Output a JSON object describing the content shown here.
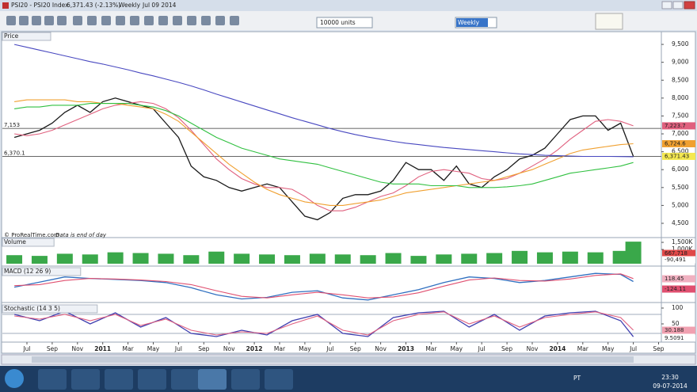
{
  "window": {
    "title": "PSI20 - PSI20 Index",
    "quote": "6,371.43 (-2.13%)",
    "period": "Weekly",
    "date": "Jul 09 2014"
  },
  "toolbar": {
    "units": "10000 units",
    "period": "Weekly"
  },
  "chart_data": [
    {
      "type": "line",
      "title": "Price",
      "source": "© ProRealTime.com",
      "note": "Data is end of day",
      "x": [
        "2010-06",
        "2010-07",
        "2010-08",
        "2010-09",
        "2010-10",
        "2010-11",
        "2010-12",
        "2011-01",
        "2011-02",
        "2011-03",
        "2011-04",
        "2011-05",
        "2011-06",
        "2011-07",
        "2011-08",
        "2011-09",
        "2011-10",
        "2011-11",
        "2011-12",
        "2012-01",
        "2012-02",
        "2012-03",
        "2012-04",
        "2012-05",
        "2012-06",
        "2012-07",
        "2012-08",
        "2012-09",
        "2012-10",
        "2012-11",
        "2012-12",
        "2013-01",
        "2013-02",
        "2013-03",
        "2013-04",
        "2013-05",
        "2013-06",
        "2013-07",
        "2013-08",
        "2013-09",
        "2013-10",
        "2013-11",
        "2013-12",
        "2014-01",
        "2014-02",
        "2014-03",
        "2014-04",
        "2014-05",
        "2014-06",
        "2014-07"
      ],
      "series": [
        {
          "color": "#1a1a1a",
          "values": [
            6900,
            7000,
            7100,
            7300,
            7600,
            7800,
            7600,
            7900,
            8000,
            7900,
            7800,
            7700,
            7300,
            6900,
            6100,
            5800,
            5700,
            5500,
            5400,
            5500,
            5600,
            5500,
            5100,
            4700,
            4600,
            4800,
            5200,
            5300,
            5300,
            5400,
            5700,
            6200,
            6000,
            6000,
            5700,
            6100,
            5600,
            5500,
            5800,
            6000,
            6300,
            6400,
            6600,
            7000,
            7400,
            7500,
            7500,
            7100,
            7300,
            6371.43
          ]
        },
        {
          "color": "#e0607e",
          "values": [
            7000,
            6950,
            7000,
            7100,
            7250,
            7400,
            7550,
            7700,
            7800,
            7850,
            7900,
            7850,
            7700,
            7450,
            7100,
            6700,
            6300,
            6000,
            5750,
            5600,
            5500,
            5500,
            5450,
            5250,
            5000,
            4850,
            4850,
            4950,
            5100,
            5250,
            5350,
            5550,
            5800,
            5950,
            6000,
            5950,
            5900,
            5750,
            5700,
            5750,
            5900,
            6100,
            6300,
            6550,
            6850,
            7100,
            7350,
            7400,
            7350,
            7224
          ]
        },
        {
          "color": "#f0a030",
          "values": [
            7900,
            7950,
            7950,
            7950,
            7950,
            7900,
            7900,
            7850,
            7850,
            7800,
            7750,
            7700,
            7550,
            7350,
            7050,
            6750,
            6450,
            6150,
            5900,
            5650,
            5450,
            5300,
            5200,
            5100,
            5050,
            5000,
            5000,
            5050,
            5100,
            5150,
            5250,
            5350,
            5400,
            5450,
            5500,
            5550,
            5600,
            5650,
            5700,
            5800,
            5900,
            6000,
            6150,
            6300,
            6450,
            6550,
            6600,
            6650,
            6700,
            6725
          ]
        },
        {
          "color": "#30c040",
          "values": [
            7700,
            7750,
            7750,
            7800,
            7800,
            7800,
            7850,
            7850,
            7850,
            7850,
            7800,
            7750,
            7650,
            7500,
            7300,
            7100,
            6900,
            6750,
            6600,
            6500,
            6400,
            6300,
            6250,
            6200,
            6150,
            6050,
            5950,
            5850,
            5750,
            5650,
            5600,
            5600,
            5600,
            5550,
            5550,
            5550,
            5500,
            5500,
            5500,
            5520,
            5550,
            5600,
            5700,
            5800,
            5900,
            5950,
            6000,
            6050,
            6100,
            6200
          ]
        },
        {
          "color": "#4848c0",
          "values": [
            9500,
            9420,
            9340,
            9260,
            9180,
            9100,
            9020,
            8950,
            8870,
            8790,
            8700,
            8620,
            8530,
            8440,
            8340,
            8230,
            8110,
            8000,
            7890,
            7780,
            7670,
            7560,
            7450,
            7350,
            7250,
            7150,
            7060,
            6980,
            6910,
            6850,
            6790,
            6740,
            6700,
            6660,
            6620,
            6590,
            6560,
            6530,
            6500,
            6470,
            6440,
            6420,
            6400,
            6390,
            6380,
            6370,
            6370,
            6370,
            6365,
            6360
          ]
        }
      ],
      "ylim": [
        4190,
        9590
      ],
      "yticks": [
        {
          "value": 9500,
          "label": "9,500"
        },
        {
          "value": 9000,
          "label": "9,000"
        },
        {
          "value": 8500,
          "label": "8,500"
        },
        {
          "value": 8000,
          "label": "8,000"
        },
        {
          "value": 7500,
          "label": "7,500"
        },
        {
          "value": 7000,
          "label": "7,000"
        },
        {
          "value": 6500,
          "label": "6,500"
        },
        {
          "value": 6000,
          "label": "6,000"
        },
        {
          "value": 5500,
          "label": "5,500"
        },
        {
          "value": 5000,
          "label": "5,000"
        },
        {
          "value": 4500,
          "label": "4,500"
        }
      ],
      "levels": [
        {
          "value": 7153,
          "label": "7,153"
        },
        {
          "value": 6370.1,
          "label": "6,370.1"
        }
      ],
      "tags": [
        {
          "value": 7223.7,
          "label": "7,223.7",
          "color": "#e0607e"
        },
        {
          "value": 6724.6,
          "label": "6,724.6",
          "color": "#f0a030"
        },
        {
          "value": 6371.43,
          "label": "6,371.43",
          "color": "#f4e850"
        }
      ]
    },
    {
      "type": "bar",
      "title": "Volume",
      "color": "#3aa84a",
      "x": [
        "2010-06",
        "2010-08",
        "2010-10",
        "2010-12",
        "2011-02",
        "2011-04",
        "2011-06",
        "2011-08",
        "2011-10",
        "2011-12",
        "2012-02",
        "2012-04",
        "2012-06",
        "2012-08",
        "2012-10",
        "2012-12",
        "2013-02",
        "2013-04",
        "2013-06",
        "2013-08",
        "2013-10",
        "2013-12",
        "2014-02",
        "2014-04",
        "2014-06",
        "2014-07"
      ],
      "values": [
        600000,
        550000,
        700000,
        650000,
        800000,
        750000,
        700000,
        600000,
        850000,
        700000,
        650000,
        600000,
        700000,
        650000,
        600000,
        750000,
        550000,
        650000,
        700000,
        750000,
        900000,
        800000,
        850000,
        800000,
        900000,
        1550000
      ],
      "ylim": [
        0,
        1780000
      ],
      "yticks": [
        {
          "value": 1500000,
          "label": "1,500K"
        },
        {
          "value": 1000000,
          "label": "1,000K"
        }
      ],
      "readouts": [
        {
          "label": "667,718",
          "color": "#e04848"
        },
        {
          "label": "-90,491",
          "color": "#ffffff"
        }
      ]
    },
    {
      "type": "line",
      "title": "MACD (12 26 9)",
      "x": [
        "2010-06",
        "2010-08",
        "2010-10",
        "2010-12",
        "2011-02",
        "2011-04",
        "2011-06",
        "2011-08",
        "2011-10",
        "2011-12",
        "2012-02",
        "2012-04",
        "2012-06",
        "2012-08",
        "2012-10",
        "2012-12",
        "2013-02",
        "2013-04",
        "2013-06",
        "2013-08",
        "2013-10",
        "2013-12",
        "2014-02",
        "2014-04",
        "2014-06",
        "2014-07"
      ],
      "series": [
        {
          "color": "#3070c0",
          "values": [
            -50,
            50,
            150,
            120,
            100,
            80,
            40,
            -60,
            -200,
            -280,
            -250,
            -150,
            -120,
            -260,
            -300,
            -200,
            -100,
            40,
            150,
            120,
            40,
            80,
            150,
            220,
            200,
            60
          ]
        },
        {
          "color": "#e05070",
          "values": [
            -20,
            0,
            80,
            120,
            110,
            90,
            60,
            0,
            -120,
            -230,
            -260,
            -200,
            -150,
            -200,
            -260,
            -240,
            -160,
            -30,
            90,
            130,
            80,
            70,
            110,
            180,
            210,
            118
          ]
        }
      ],
      "ylim": [
        -350,
        300
      ],
      "readouts": [
        {
          "label": "118.45",
          "color": "#f0b0c0"
        },
        {
          "label": "-124.11",
          "color": "#e05070"
        }
      ]
    },
    {
      "type": "line",
      "title": "Stochastic (14 3 5)",
      "x": [
        "2010-06",
        "2010-08",
        "2010-10",
        "2010-12",
        "2011-02",
        "2011-04",
        "2011-06",
        "2011-08",
        "2011-10",
        "2011-12",
        "2012-02",
        "2012-04",
        "2012-06",
        "2012-08",
        "2012-10",
        "2012-12",
        "2013-02",
        "2013-04",
        "2013-06",
        "2013-08",
        "2013-10",
        "2013-12",
        "2014-02",
        "2014-04",
        "2014-06",
        "2014-07"
      ],
      "series": [
        {
          "color": "#4040b0",
          "values": [
            80,
            60,
            90,
            50,
            85,
            40,
            70,
            20,
            10,
            30,
            15,
            60,
            80,
            20,
            10,
            70,
            85,
            90,
            40,
            80,
            30,
            75,
            85,
            90,
            60,
            9.5091
          ]
        },
        {
          "color": "#e06080",
          "values": [
            75,
            65,
            80,
            60,
            80,
            45,
            65,
            30,
            15,
            25,
            20,
            50,
            75,
            30,
            15,
            60,
            80,
            88,
            50,
            75,
            40,
            70,
            80,
            88,
            70,
            30.188
          ]
        }
      ],
      "ylim": [
        -7.5,
        110
      ],
      "yticks": [
        100,
        50
      ],
      "levels": [
        80,
        20
      ],
      "readouts": [
        {
          "label": "30.188",
          "color": "#f0a0b0"
        },
        {
          "label": "9.5091",
          "color": "#ffffff"
        }
      ]
    }
  ],
  "time_axis": {
    "ticks": [
      {
        "value": "2010-07",
        "label": "Jul"
      },
      {
        "value": "2010-09",
        "label": "Sep"
      },
      {
        "value": "2010-11",
        "label": "Nov"
      },
      {
        "value": "2011-01",
        "label": "2011"
      },
      {
        "value": "2011-03",
        "label": "Mar"
      },
      {
        "value": "2011-05",
        "label": "May"
      },
      {
        "value": "2011-07",
        "label": "Jul"
      },
      {
        "value": "2011-09",
        "label": "Sep"
      },
      {
        "value": "2011-11",
        "label": "Nov"
      },
      {
        "value": "2012-01",
        "label": "2012"
      },
      {
        "value": "2012-03",
        "label": "Mar"
      },
      {
        "value": "2012-05",
        "label": "May"
      },
      {
        "value": "2012-07",
        "label": "Jul"
      },
      {
        "value": "2012-09",
        "label": "Sep"
      },
      {
        "value": "2012-11",
        "label": "Nov"
      },
      {
        "value": "2013-01",
        "label": "2013"
      },
      {
        "value": "2013-03",
        "label": "Mar"
      },
      {
        "value": "2013-05",
        "label": "May"
      },
      {
        "value": "2013-07",
        "label": "Jul"
      },
      {
        "value": "2013-09",
        "label": "Sep"
      },
      {
        "value": "2013-11",
        "label": "Nov"
      },
      {
        "value": "2014-01",
        "label": "2014"
      },
      {
        "value": "2014-03",
        "label": "Mar"
      },
      {
        "value": "2014-05",
        "label": "May"
      },
      {
        "value": "2014-07",
        "label": "Jul"
      },
      {
        "value": "2014-09",
        "label": "Sep"
      }
    ]
  },
  "taskbar": {
    "language": "PT",
    "time": "23:30",
    "date": "09-07-2014"
  }
}
